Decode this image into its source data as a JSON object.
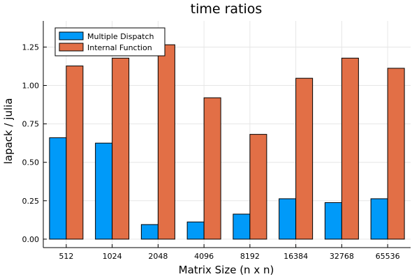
{
  "chart_data": {
    "type": "bar",
    "title": "time ratios",
    "xlabel": "Matrix Size (n x n)",
    "ylabel": "lapack / julia",
    "categories": [
      "512",
      "1024",
      "2048",
      "4096",
      "8192",
      "16384",
      "32768",
      "65536"
    ],
    "series": [
      {
        "name": "Multiple Dispatch",
        "color": "#009af9",
        "values": [
          0.66,
          0.625,
          0.095,
          0.112,
          0.163,
          0.263,
          0.238,
          0.263
        ]
      },
      {
        "name": "Internal Function",
        "color": "#e26f46",
        "values": [
          1.127,
          1.178,
          1.265,
          0.92,
          0.682,
          1.047,
          1.178,
          1.112
        ]
      }
    ],
    "ylim": [
      -0.055,
      1.42
    ],
    "yticks": [
      0.0,
      0.25,
      0.5,
      0.75,
      1.0,
      1.25
    ],
    "ytick_labels": [
      "0.00",
      "0.25",
      "0.50",
      "0.75",
      "1.00",
      "1.25"
    ],
    "grid": true,
    "legend_position": "top-left"
  }
}
